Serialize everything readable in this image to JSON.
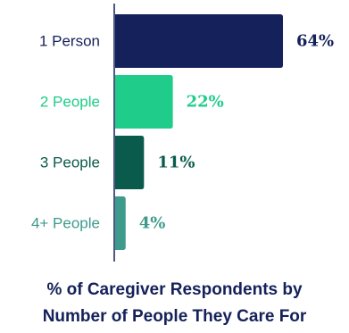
{
  "chart_data": {
    "type": "bar",
    "orientation": "horizontal",
    "categories": [
      "1 Person",
      "2 People",
      "3 People",
      "4+ People"
    ],
    "values": [
      64,
      22,
      11,
      4
    ],
    "value_labels": [
      "64%",
      "22%",
      "11%",
      "4%"
    ],
    "colors": [
      "#14215a",
      "#1fcc8a",
      "#0b5b4c",
      "#3d9a8c"
    ],
    "title_lines": [
      "% of Caregiver Respondents by",
      "Number of People They Care For"
    ],
    "xlim": [
      0,
      64
    ],
    "grid": false,
    "legend": "none"
  }
}
